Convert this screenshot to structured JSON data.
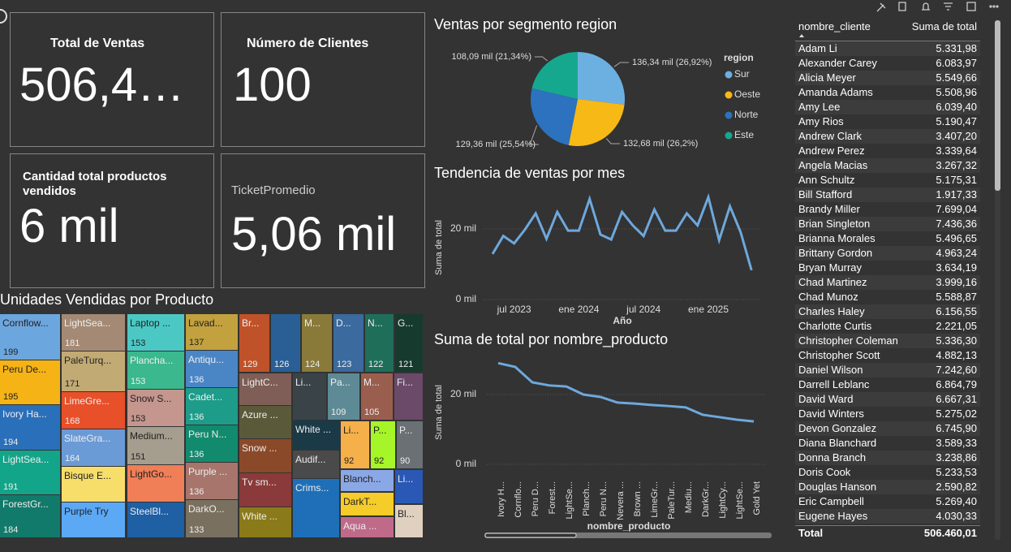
{
  "cards": [
    {
      "label": "Total de Ventas",
      "value": "506,4…"
    },
    {
      "label": "Número de Clientes",
      "value": "100"
    },
    {
      "label": "Cantidad total productos vendidos",
      "value": "6 mil"
    },
    {
      "label": "TicketPromedio",
      "value": "5,06 mil"
    }
  ],
  "chart_data": [
    {
      "type": "pie",
      "title": "Ventas por segmento region",
      "legend_title": "region",
      "legend": "right",
      "categories": [
        "Sur",
        "Oeste",
        "Norte",
        "Este"
      ],
      "values": [
        136.34,
        132.68,
        129.36,
        108.09
      ],
      "value_labels": [
        "136,34 mil (26,92%)",
        "132,68 mil (26,2%)",
        "129,36 mil (25,54%)",
        "108,09 mil (21,34%)"
      ],
      "colors": [
        "#6cb0e2",
        "#f7b916",
        "#2c72bf",
        "#16a88e"
      ]
    },
    {
      "type": "line",
      "title": "Tendencia de ventas por mes",
      "ylabel": "Suma de total",
      "xlabel": "Año",
      "color": "#6ea8dc",
      "grid": true,
      "x": [
        "2023-05",
        "2023-06",
        "2023-07",
        "2023-08",
        "2023-09",
        "2023-10",
        "2023-11",
        "2023-12",
        "2024-01",
        "2024-02",
        "2024-03",
        "2024-04",
        "2024-05",
        "2024-06",
        "2024-07",
        "2024-08",
        "2024-09",
        "2024-10",
        "2024-11",
        "2024-12",
        "2025-01",
        "2025-02",
        "2025-03",
        "2025-04",
        "2025-05"
      ],
      "values": [
        12.9,
        18,
        15.9,
        19.8,
        24.4,
        17.2,
        24.8,
        19.5,
        19.5,
        28.5,
        18.4,
        17,
        24.8,
        21,
        18,
        25.5,
        19.5,
        19.5,
        24.4,
        21,
        29,
        16.8,
        26.4,
        19,
        8.3
      ],
      "xticks": [
        {
          "value": "2023-07",
          "label": "jul 2023"
        },
        {
          "value": "2024-01",
          "label": "ene 2024"
        },
        {
          "value": "2024-07",
          "label": "jul 2024"
        },
        {
          "value": "2025-01",
          "label": "ene 2025"
        }
      ],
      "ylim": [
        0,
        30
      ],
      "yticks": [
        {
          "value": 0,
          "label": "0 mil"
        },
        {
          "value": 20,
          "label": "20 mil"
        }
      ]
    },
    {
      "type": "line",
      "title": "Suma de total por nombre_producto",
      "ylabel": "Suma de total",
      "xlabel": "nombre_producto",
      "color": "#6ea8dc",
      "grid": true,
      "categories": [
        "Ivory H...",
        "Cornflo...",
        "Peru D...",
        "Forest...",
        "LightSe...",
        "Planch...",
        "Peru N...",
        "Nevera ...",
        "Brown ...",
        "LimeGr...",
        "PaleTur...",
        "Mediu...",
        "DarkGr...",
        "LightCy...",
        "LightSe...",
        "Gold Yet"
      ],
      "values": [
        29,
        27.9,
        23.5,
        22.6,
        22.3,
        20,
        19.3,
        17.7,
        17.4,
        17,
        16.7,
        16.3,
        14.2,
        13.5,
        12.8,
        12.3
      ],
      "ylim": [
        0,
        30
      ],
      "yticks": [
        {
          "value": 0,
          "label": "0 mil"
        },
        {
          "value": 20,
          "label": "20 mil"
        }
      ]
    },
    {
      "type": "treemap",
      "title": "Unidades Vendidas por Producto",
      "tiles": [
        {
          "label": "Cornflow...",
          "value": 199,
          "color": "#6ca6de"
        },
        {
          "label": "Peru De...",
          "value": 195,
          "color": "#f5b316"
        },
        {
          "label": "Ivory Ha...",
          "value": 194,
          "color": "#2a6fba"
        },
        {
          "label": "LightSea...",
          "value": 191,
          "color": "#12a58a"
        },
        {
          "label": "ForestGr...",
          "value": 184,
          "color": "#127a6a"
        },
        {
          "label": "LightSea...",
          "value": 181,
          "color": "#a48a74"
        },
        {
          "label": "PaleTurq...",
          "value": 171,
          "color": "#c2aa74"
        },
        {
          "label": "LimeGre...",
          "value": 168,
          "color": "#e8502a"
        },
        {
          "label": "SlateGra...",
          "value": 164,
          "color": "#6b9bd6"
        },
        {
          "label": "Bisque E...",
          "color": "#f7de6b"
        },
        {
          "label": "Purple Try",
          "color": "#5ba8f5"
        },
        {
          "label": "Laptop ...",
          "value": 153,
          "color": "#4cc8c4"
        },
        {
          "label": "Plancha...",
          "value": 153,
          "color": "#3bb88d"
        },
        {
          "label": "Snow S...",
          "value": 153,
          "color": "#c4968e"
        },
        {
          "label": "Medium...",
          "value": 151,
          "color": "#a59d8d"
        },
        {
          "label": "LightGo...",
          "color": "#f07e57"
        },
        {
          "label": "SteelBl...",
          "color": "#1f5fa3"
        },
        {
          "label": "Lavad...",
          "value": 137,
          "color": "#c2a13e"
        },
        {
          "label": "Antiqu...",
          "value": 136,
          "color": "#4a85c6"
        },
        {
          "label": "Cadet...",
          "value": 136,
          "color": "#1d9c8a"
        },
        {
          "label": "Peru N...",
          "value": 136,
          "color": "#128a6e"
        },
        {
          "label": "Purple ...",
          "value": 136,
          "color": "#a7756c"
        },
        {
          "label": "DarkO...",
          "value": 133,
          "color": "#7a7060"
        },
        {
          "label": "Br...",
          "value": 129,
          "color": "#c0522a"
        },
        {
          "value": 126,
          "color": "#2a5f96"
        },
        {
          "label": "M...",
          "value": 124,
          "color": "#8a7a3a"
        },
        {
          "label": "D...",
          "value": 123,
          "color": "#3a6a9e"
        },
        {
          "label": "N...",
          "value": 122,
          "color": "#1f6e5a"
        },
        {
          "label": "G...",
          "value": 121,
          "color": "#163a2e"
        },
        {
          "label": "LightC...",
          "color": "#7e5e56"
        },
        {
          "label": "Azure ...",
          "color": "#5a5a3a"
        },
        {
          "label": "Snow ...",
          "color": "#8a4a2a"
        },
        {
          "label": "Tv sm...",
          "color": "#8a3a3a"
        },
        {
          "label": "White ...",
          "color": "#8a7a1a"
        },
        {
          "label": "Li...",
          "color": "#3a4448"
        },
        {
          "label": "White ...",
          "color": "#1a3a48"
        },
        {
          "label": "Audif...",
          "color": "#4a4a4a"
        },
        {
          "label": "Crims...",
          "color": "#1e6fb8"
        },
        {
          "label": "Pa...",
          "value": 109,
          "color": "#5e8a96"
        },
        {
          "label": "M...",
          "value": 105,
          "color": "#9a5e4e"
        },
        {
          "label": "Fi...",
          "color": "#6a4a68"
        },
        {
          "label": "Li...",
          "value": 92,
          "color": "#f5b04a"
        },
        {
          "label": "P...",
          "value": 92,
          "color": "#a6f528"
        },
        {
          "label": "P...",
          "value": 90,
          "color": "#6a7074"
        },
        {
          "label": "Blanch...",
          "color": "#8aa8e6"
        },
        {
          "label": "Li...",
          "color": "#2a58b5"
        },
        {
          "label": "DarkT...",
          "color": "#f5cc2a"
        },
        {
          "label": "Bl...",
          "color": "#e0d0c0"
        },
        {
          "label": "Aqua ...",
          "color": "#c06a8a"
        }
      ]
    }
  ],
  "table": {
    "columns": [
      "nombre_cliente",
      "Suma de total"
    ],
    "rows": [
      [
        "Adam Li",
        "5.331,98"
      ],
      [
        "Alexander Carey",
        "6.083,97"
      ],
      [
        "Alicia Meyer",
        "5.549,66"
      ],
      [
        "Amanda Adams",
        "5.508,96"
      ],
      [
        "Amy Lee",
        "6.039,40"
      ],
      [
        "Amy Rios",
        "5.190,47"
      ],
      [
        "Andrew Clark",
        "3.407,20"
      ],
      [
        "Andrew Perez",
        "3.339,64"
      ],
      [
        "Angela Macias",
        "3.267,32"
      ],
      [
        "Ann Schultz",
        "5.175,31"
      ],
      [
        "Bill Stafford",
        "1.917,33"
      ],
      [
        "Brandy Miller",
        "7.699,04"
      ],
      [
        "Brian Singleton",
        "7.436,36"
      ],
      [
        "Brianna Morales",
        "5.496,65"
      ],
      [
        "Brittany Gordon",
        "4.963,24"
      ],
      [
        "Bryan Murray",
        "3.634,19"
      ],
      [
        "Chad Martinez",
        "3.999,16"
      ],
      [
        "Chad Munoz",
        "5.588,87"
      ],
      [
        "Charles Haley",
        "6.156,55"
      ],
      [
        "Charlotte Curtis",
        "2.221,05"
      ],
      [
        "Christopher Coleman",
        "5.336,30"
      ],
      [
        "Christopher Scott",
        "4.882,13"
      ],
      [
        "Daniel Wilson",
        "7.242,60"
      ],
      [
        "Darrell Leblanc",
        "6.864,79"
      ],
      [
        "David Ward",
        "6.667,31"
      ],
      [
        "David Winters",
        "5.275,02"
      ],
      [
        "Devon Gonzalez",
        "6.745,90"
      ],
      [
        "Diana Blanchard",
        "3.589,33"
      ],
      [
        "Donna Branch",
        "3.238,86"
      ],
      [
        "Doris Cook",
        "5.233,53"
      ],
      [
        "Douglas Hanson",
        "2.590,82"
      ],
      [
        "Eric Campbell",
        "5.269,40"
      ],
      [
        "Eugene Hayes",
        "4.030,33"
      ]
    ],
    "total": [
      "Total",
      "506.460,01"
    ]
  }
}
